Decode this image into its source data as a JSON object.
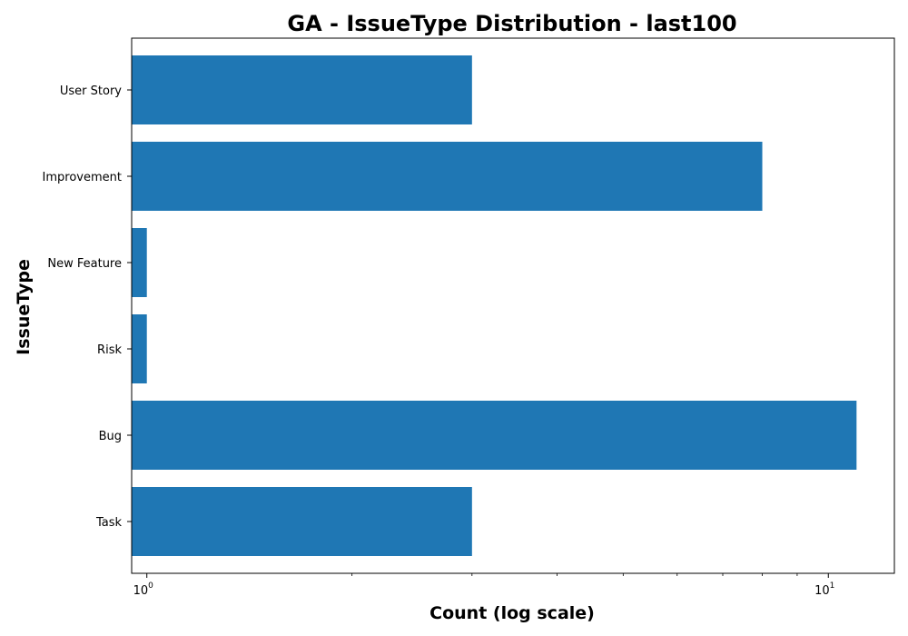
{
  "chart_data": {
    "type": "bar",
    "orientation": "horizontal",
    "title": "GA - IssueType Distribution - last100",
    "xlabel": "Count (log scale)",
    "ylabel": "IssueType",
    "x_scale": "log",
    "xlim": [
      0.95,
      12.5
    ],
    "categories": [
      "Task",
      "Bug",
      "Risk",
      "New Feature",
      "Improvement",
      "User Story"
    ],
    "values": [
      3,
      11,
      1,
      1,
      8,
      3
    ],
    "bar_color": "#1f77b4",
    "x_major_ticks": [
      {
        "value": 1,
        "base": "10",
        "exponent": "0"
      },
      {
        "value": 10,
        "base": "10",
        "exponent": "1"
      }
    ],
    "x_minor_ticks": [
      2,
      3,
      4,
      5,
      6,
      7,
      8,
      9
    ],
    "grid": false,
    "legend": "none"
  }
}
